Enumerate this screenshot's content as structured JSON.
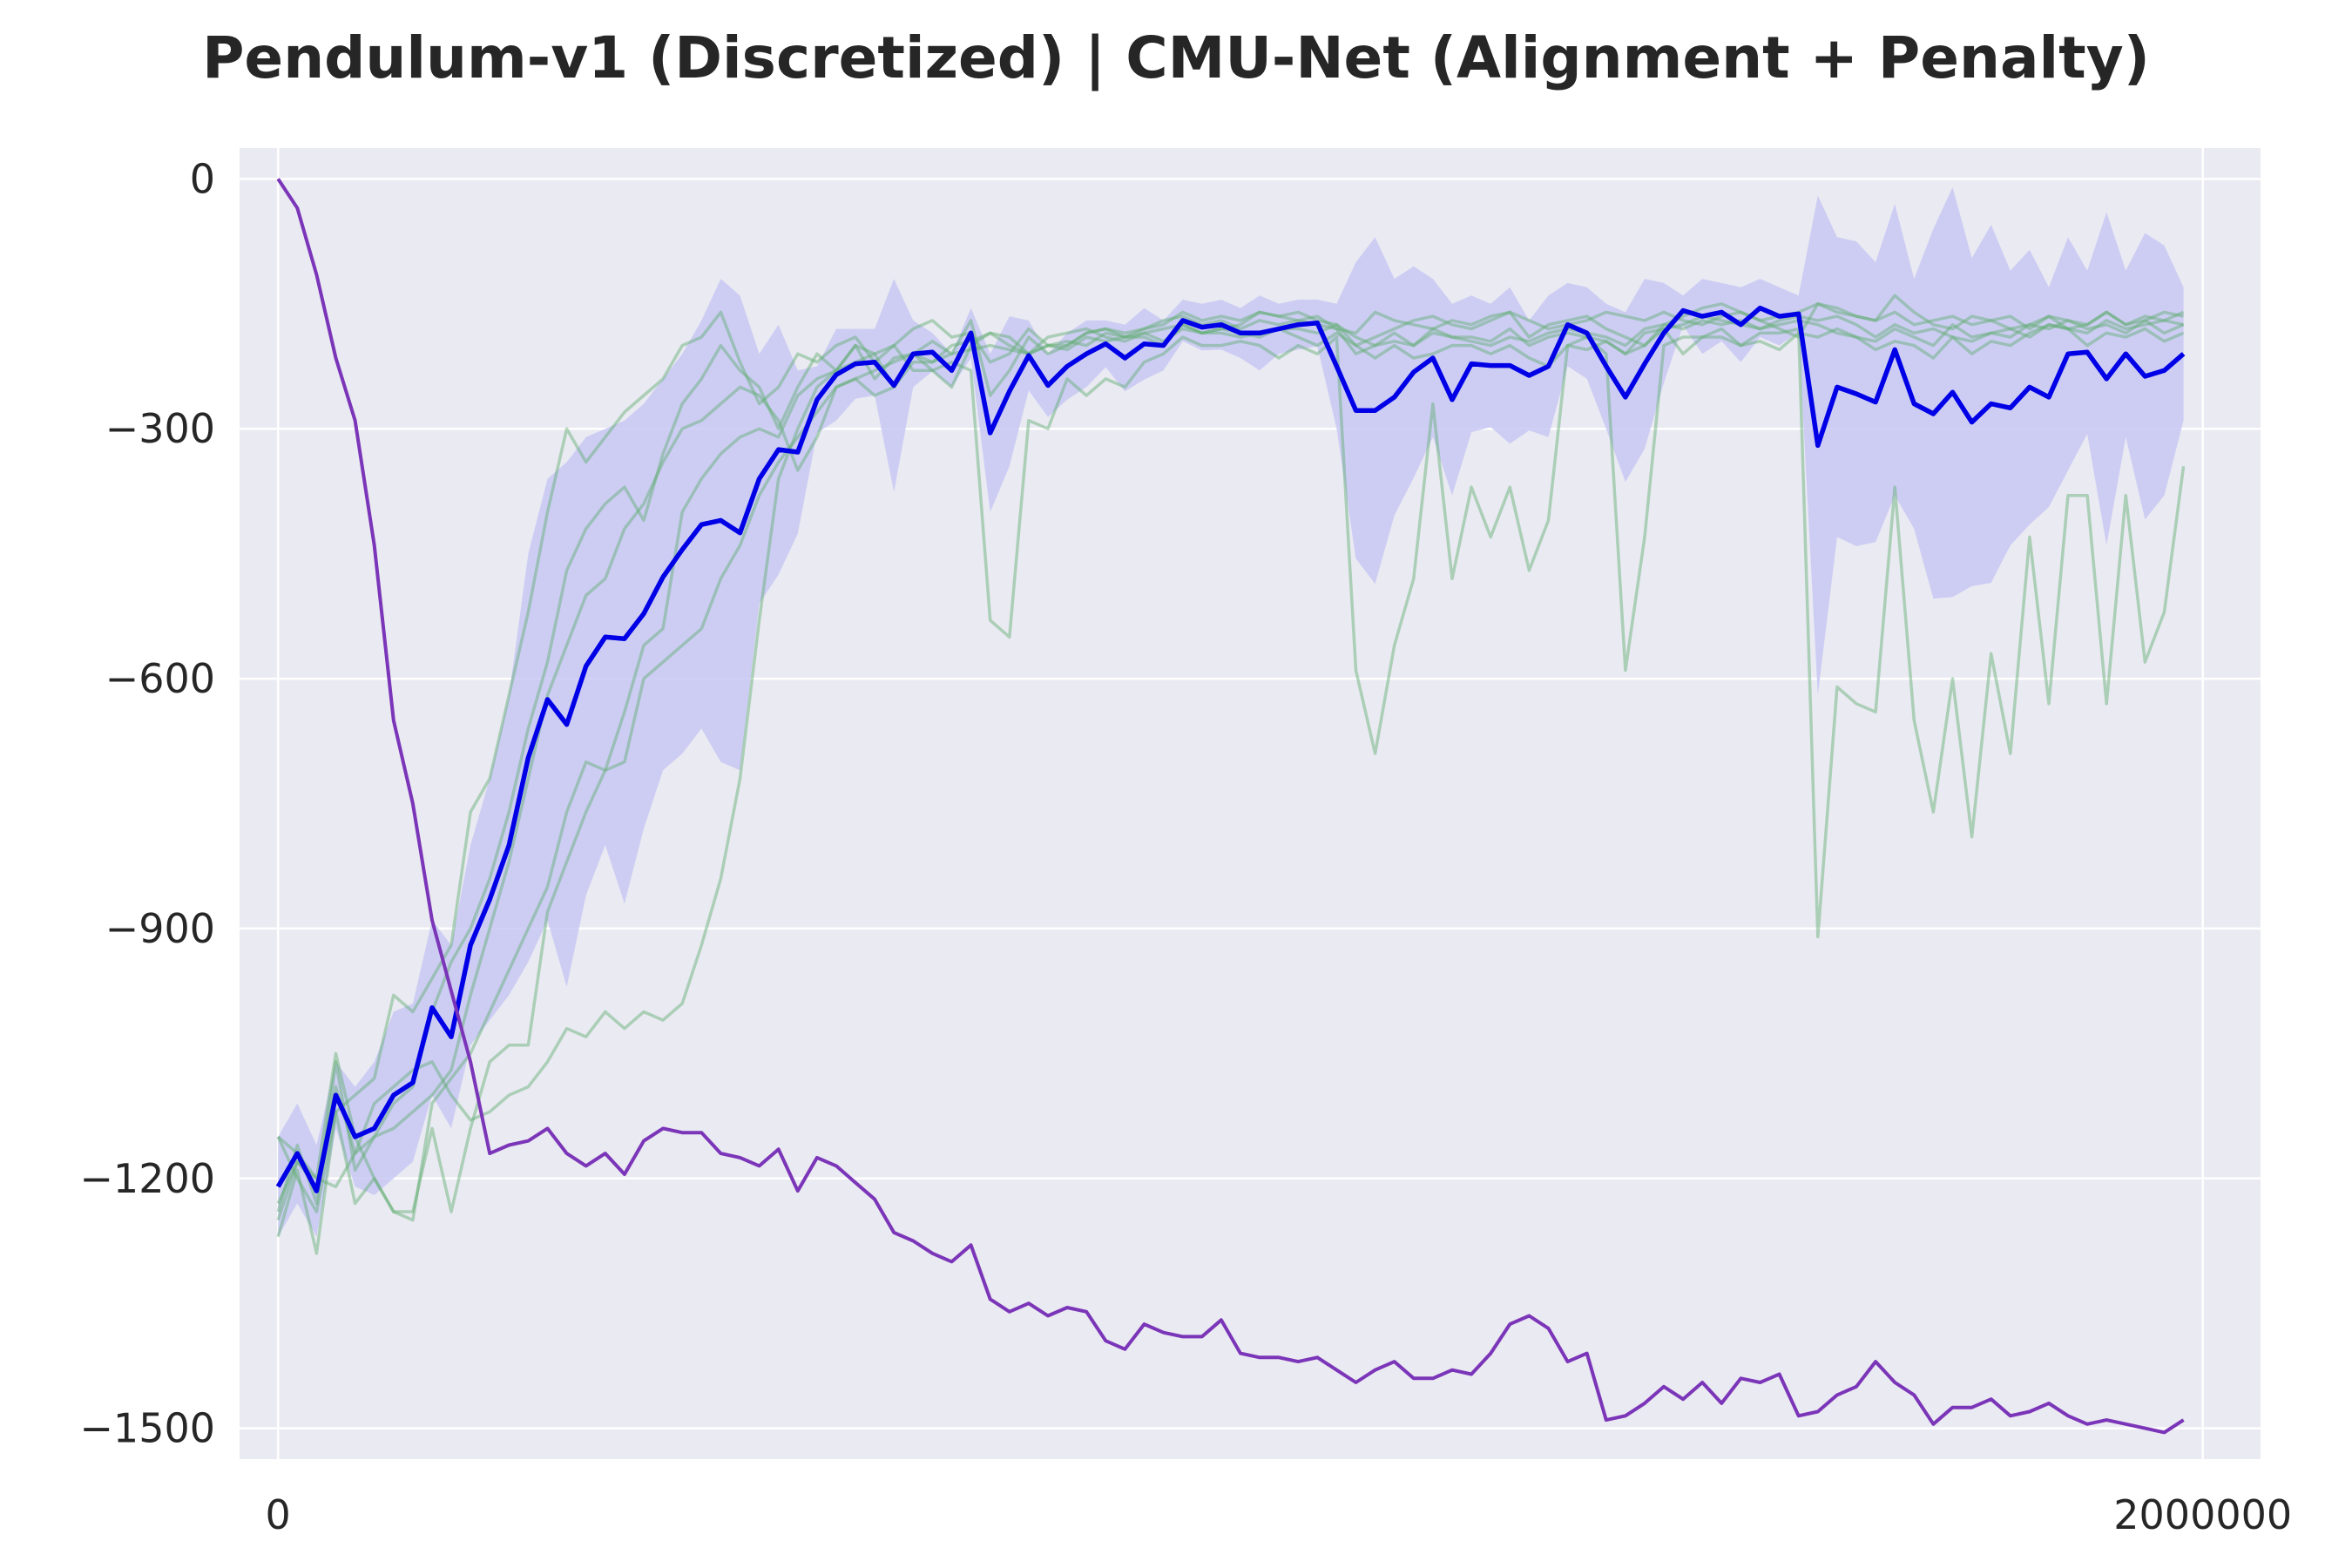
{
  "chart_data": {
    "type": "line",
    "title": "Pendulum-v1 (Discretized) | CMU-Net (Alignment + Penalty)",
    "xlabel": "",
    "ylabel": "",
    "xlim": [
      -40000,
      2060000
    ],
    "ylim": [
      -1537,
      37
    ],
    "xticks": [
      0,
      2000000
    ],
    "xtick_labels": [
      "0",
      "2000000"
    ],
    "yticks": [
      0,
      -300,
      -600,
      -900,
      -1200,
      -1500
    ],
    "ytick_labels": [
      "0",
      "−300",
      "−600",
      "−900",
      "−1200",
      "−1500"
    ],
    "grid": true,
    "legend": "none",
    "x_step": 20000,
    "colors": {
      "background": "#eaeaf2",
      "grid": "#ffffff",
      "mean": "#0000e6",
      "band": "#c8c8f5",
      "seeds": "#5fae6e",
      "purple": "#7b35b8"
    },
    "series": [
      {
        "role": "mean",
        "values": [
          -1210,
          -1170,
          -1215,
          -1100,
          -1150,
          -1140,
          -1100,
          -1085,
          -995,
          -1030,
          -920,
          -865,
          -800,
          -695,
          -625,
          -655,
          -585,
          -550,
          -552,
          -522,
          -478,
          -445,
          -415,
          -410,
          -425,
          -360,
          -325,
          -328,
          -265,
          -235,
          -222,
          -220,
          -248,
          -210,
          -208,
          -230,
          -185,
          -305,
          -255,
          -212,
          -248,
          -225,
          -210,
          -198,
          -215,
          -198,
          -200,
          -170,
          -178,
          -175,
          -185,
          -185,
          -180,
          -175,
          -173,
          -225,
          -278,
          -278,
          -262,
          -232,
          -215,
          -265,
          -222,
          -224,
          -224,
          -236,
          -225,
          -175,
          -185,
          -225,
          -262,
          -222,
          -185,
          -158,
          -165,
          -160,
          -175,
          -155,
          -165,
          -162,
          -320,
          -250,
          -258,
          -268,
          -205,
          -270,
          -282,
          -256,
          -292,
          -270,
          -275,
          -250,
          -262,
          -210,
          -208,
          -240,
          -210,
          -237,
          -230,
          -210
        ]
      },
      {
        "role": "std-band-upper",
        "values": [
          -1150,
          -1110,
          -1160,
          -1060,
          -1090,
          -1060,
          -1000,
          -990,
          -890,
          -920,
          -800,
          -720,
          -620,
          -450,
          -360,
          -340,
          -310,
          -300,
          -290,
          -270,
          -240,
          -210,
          -170,
          -120,
          -140,
          -210,
          -175,
          -230,
          -225,
          -180,
          -180,
          -180,
          -120,
          -170,
          -185,
          -210,
          -155,
          -210,
          -165,
          -170,
          -210,
          -185,
          -170,
          -170,
          -175,
          -155,
          -170,
          -145,
          -150,
          -145,
          -155,
          -140,
          -150,
          -145,
          -145,
          -150,
          -100,
          -70,
          -120,
          -105,
          -120,
          -150,
          -140,
          -150,
          -130,
          -170,
          -140,
          -125,
          -130,
          -150,
          -160,
          -120,
          -125,
          -140,
          -120,
          -125,
          -130,
          -120,
          -130,
          -140,
          -20,
          -70,
          -75,
          -100,
          -30,
          -120,
          -60,
          -10,
          -95,
          -55,
          -110,
          -85,
          -130,
          -70,
          -110,
          -40,
          -110,
          -65,
          -80,
          -130
        ]
      },
      {
        "role": "std-band-lower",
        "values": [
          -1270,
          -1230,
          -1270,
          -1140,
          -1210,
          -1220,
          -1200,
          -1180,
          -1100,
          -1140,
          -1040,
          -1010,
          -980,
          -940,
          -890,
          -970,
          -860,
          -800,
          -870,
          -780,
          -710,
          -690,
          -660,
          -700,
          -710,
          -510,
          -475,
          -426,
          -305,
          -290,
          -264,
          -260,
          -376,
          -250,
          -231,
          -250,
          -215,
          -400,
          -345,
          -254,
          -286,
          -265,
          -250,
          -226,
          -255,
          -241,
          -230,
          -195,
          -206,
          -205,
          -215,
          -230,
          -210,
          -205,
          -201,
          -300,
          -456,
          -486,
          -404,
          -359,
          -310,
          -380,
          -304,
          -298,
          -318,
          -302,
          -310,
          -225,
          -240,
          -300,
          -364,
          -324,
          -245,
          -176,
          -210,
          -195,
          -220,
          -190,
          -200,
          -184,
          -620,
          -430,
          -441,
          -436,
          -380,
          -420,
          -504,
          -502,
          -489,
          -485,
          -440,
          -415,
          -394,
          -350,
          -306,
          -440,
          -310,
          -409,
          -380,
          -290
        ]
      },
      {
        "role": "seed-1",
        "values": [
          -1150,
          -1200,
          -1240,
          -1120,
          -1100,
          -1080,
          -980,
          -1000,
          -960,
          -920,
          -760,
          -720,
          -620,
          -520,
          -400,
          -300,
          -340,
          -310,
          -280,
          -260,
          -240,
          -200,
          -190,
          -160,
          -220,
          -270,
          -250,
          -210,
          -220,
          -200,
          -190,
          -220,
          -200,
          -180,
          -170,
          -190,
          -185,
          -220,
          -210,
          -180,
          -200,
          -200,
          -185,
          -180,
          -190,
          -180,
          -175,
          -160,
          -170,
          -165,
          -170,
          -160,
          -165,
          -160,
          -170,
          -175,
          -200,
          -190,
          -180,
          -170,
          -165,
          -175,
          -180,
          -170,
          -160,
          -190,
          -175,
          -170,
          -165,
          -180,
          -190,
          -200,
          -175,
          -165,
          -155,
          -150,
          -160,
          -170,
          -180,
          -190,
          -150,
          -155,
          -165,
          -170,
          -140,
          -160,
          -175,
          -180,
          -165,
          -170,
          -180,
          -175,
          -165,
          -180,
          -175,
          -160,
          -175,
          -165,
          -170,
          -160
        ]
      },
      {
        "role": "seed-2",
        "values": [
          -1230,
          -1180,
          -1210,
          -1090,
          -1170,
          -1150,
          -1140,
          -1120,
          -1100,
          -1070,
          -980,
          -900,
          -820,
          -720,
          -620,
          -560,
          -500,
          -480,
          -420,
          -390,
          -340,
          -300,
          -290,
          -270,
          -250,
          -260,
          -290,
          -350,
          -310,
          -250,
          -240,
          -230,
          -220,
          -210,
          -220,
          -200,
          -195,
          -185,
          -200,
          -210,
          -190,
          -185,
          -180,
          -190,
          -195,
          -185,
          -180,
          -175,
          -185,
          -180,
          -175,
          -160,
          -165,
          -170,
          -175,
          -180,
          -185,
          -160,
          -170,
          -175,
          -180,
          -170,
          -175,
          -165,
          -160,
          -170,
          -180,
          -175,
          -170,
          -160,
          -165,
          -170,
          -160,
          -170,
          -175,
          -165,
          -160,
          -170,
          -165,
          -160,
          -150,
          -160,
          -165,
          -170,
          -160,
          -175,
          -170,
          -165,
          -175,
          -170,
          -165,
          -180,
          -165,
          -170,
          -175,
          -160,
          -175,
          -170,
          -160,
          -165
        ]
      },
      {
        "role": "seed-3",
        "values": [
          -1270,
          -1190,
          -1290,
          -1120,
          -1230,
          -1200,
          -1240,
          -1250,
          -1110,
          -1080,
          -1050,
          -1000,
          -950,
          -900,
          -850,
          -760,
          -700,
          -710,
          -640,
          -560,
          -540,
          -400,
          -360,
          -330,
          -310,
          -300,
          -310,
          -260,
          -240,
          -230,
          -200,
          -240,
          -215,
          -210,
          -230,
          -250,
          -200,
          -185,
          -190,
          -210,
          -200,
          -205,
          -190,
          -195,
          -190,
          -190,
          -200,
          -175,
          -185,
          -180,
          -185,
          -190,
          -180,
          -190,
          -200,
          -185,
          -200,
          -215,
          -200,
          -215,
          -210,
          -200,
          -200,
          -210,
          -200,
          -215,
          -225,
          -200,
          -205,
          -195,
          -210,
          -200,
          -180,
          -210,
          -190,
          -180,
          -200,
          -195,
          -205,
          -185,
          -190,
          -180,
          -190,
          -205,
          -195,
          -200,
          -215,
          -190,
          -210,
          -195,
          -200,
          -185,
          -175,
          -180,
          -200,
          -185,
          -190,
          -180,
          -195,
          -185
        ]
      },
      {
        "role": "seed-4",
        "values": [
          -1240,
          -1160,
          -1230,
          -1060,
          -1190,
          -1150,
          -1110,
          -1090,
          -1000,
          -940,
          -900,
          -840,
          -760,
          -660,
          -580,
          -470,
          -420,
          -390,
          -370,
          -410,
          -330,
          -270,
          -240,
          -200,
          -230,
          -250,
          -300,
          -250,
          -210,
          -230,
          -200,
          -210,
          -250,
          -210,
          -195,
          -210,
          -170,
          -260,
          -230,
          -190,
          -210,
          -200,
          -185,
          -180,
          -185,
          -180,
          -170,
          -165,
          -175,
          -170,
          -180,
          -170,
          -175,
          -170,
          -165,
          -180,
          -210,
          -200,
          -185,
          -200,
          -180,
          -190,
          -190,
          -195,
          -180,
          -200,
          -190,
          -185,
          -190,
          -195,
          -210,
          -185,
          -180,
          -175,
          -165,
          -170,
          -175,
          -180,
          -170,
          -165,
          -170,
          -165,
          -175,
          -190,
          -175,
          -185,
          -180,
          -190,
          -195,
          -185,
          -190,
          -175,
          -180,
          -170,
          -180,
          -175,
          -185,
          -170,
          -185,
          -175
        ]
      },
      {
        "role": "seed-5",
        "values": [
          -1150,
          -1170,
          -1200,
          -1210,
          -1170,
          -1110,
          -1090,
          -1070,
          -1060,
          -1100,
          -1130,
          -1120,
          -1100,
          -1090,
          -1060,
          -1020,
          -1030,
          -1000,
          -1020,
          -1000,
          -1010,
          -990,
          -920,
          -840,
          -720,
          -530,
          -360,
          -300,
          -250,
          -230,
          -220,
          -210,
          -200,
          -230,
          -230,
          -220,
          -230,
          -530,
          -550,
          -290,
          -300,
          -240,
          -260,
          -240,
          -250,
          -220,
          -210,
          -190,
          -200,
          -200,
          -195,
          -200,
          -215,
          -200,
          -210,
          -190,
          -590,
          -690,
          -560,
          -480,
          -270,
          -480,
          -370,
          -430,
          -370,
          -470,
          -410,
          -200,
          -190,
          -210,
          -590,
          -430,
          -200,
          -190,
          -190,
          -190,
          -200,
          -185,
          -185,
          -180,
          -910,
          -610,
          -630,
          -640,
          -370,
          -650,
          -760,
          -600,
          -790,
          -570,
          -690,
          -430,
          -630,
          -380,
          -380,
          -630,
          -380,
          -580,
          -520,
          -345
        ]
      },
      {
        "role": "seed-6",
        "values": [
          -1250,
          -1180,
          -1200,
          -1050,
          -1150,
          -1200,
          -1240,
          -1240,
          -1140,
          -1240,
          -1140,
          -1060,
          -1040,
          -1040,
          -880,
          -820,
          -760,
          -710,
          -700,
          -600,
          -580,
          -560,
          -540,
          -480,
          -440,
          -380,
          -340,
          -310,
          -280,
          -250,
          -240,
          -260,
          -250,
          -220,
          -220,
          -210,
          -205,
          -200,
          -205,
          -210,
          -200,
          -195,
          -200,
          -185,
          -190,
          -185,
          -195,
          -180,
          -185,
          -185,
          -190,
          -185,
          -180,
          -180,
          -185,
          -175,
          -190,
          -200,
          -195,
          -200,
          -185,
          -190,
          -195,
          -200,
          -190,
          -195,
          -185,
          -180,
          -185,
          -190,
          -200,
          -180,
          -175,
          -180,
          -170,
          -175,
          -170,
          -180,
          -175,
          -170,
          -175,
          -185,
          -190,
          -195,
          -180,
          -190,
          -200,
          -175,
          -190,
          -185,
          -180,
          -190,
          -175,
          -180,
          -185,
          -170,
          -180,
          -175,
          -170,
          -175
        ]
      },
      {
        "role": "purple",
        "values": [
          0,
          -35,
          -115,
          -215,
          -290,
          -440,
          -650,
          -750,
          -890,
          -975,
          -1060,
          -1170,
          -1160,
          -1155,
          -1140,
          -1170,
          -1185,
          -1170,
          -1195,
          -1155,
          -1140,
          -1145,
          -1145,
          -1170,
          -1175,
          -1185,
          -1165,
          -1215,
          -1175,
          -1185,
          -1205,
          -1225,
          -1265,
          -1275,
          -1290,
          -1300,
          -1280,
          -1345,
          -1360,
          -1350,
          -1365,
          -1355,
          -1360,
          -1395,
          -1405,
          -1375,
          -1385,
          -1390,
          -1390,
          -1370,
          -1410,
          -1415,
          -1415,
          -1420,
          -1415,
          -1430,
          -1445,
          -1430,
          -1420,
          -1440,
          -1440,
          -1430,
          -1435,
          -1410,
          -1375,
          -1365,
          -1380,
          -1420,
          -1410,
          -1490,
          -1485,
          -1470,
          -1450,
          -1465,
          -1445,
          -1470,
          -1440,
          -1445,
          -1435,
          -1485,
          -1480,
          -1460,
          -1450,
          -1420,
          -1445,
          -1460,
          -1495,
          -1475,
          -1475,
          -1465,
          -1485,
          -1480,
          -1470,
          -1485,
          -1495,
          -1490,
          -1495,
          -1500,
          -1505,
          -1490
        ]
      }
    ]
  }
}
